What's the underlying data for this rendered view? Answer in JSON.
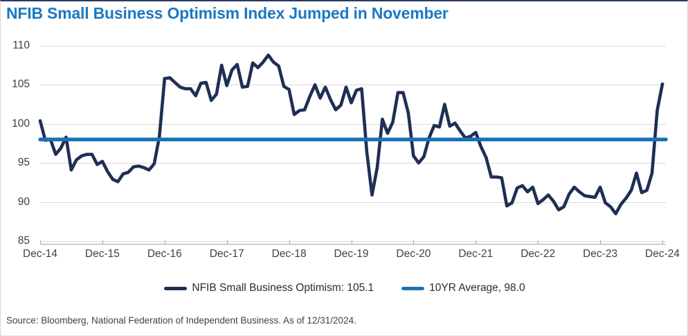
{
  "footer": {
    "source": "Source: Bloomberg, National Federation of Independent Business. As of 12/31/2024."
  },
  "colors": {
    "title": "#1b78c2",
    "series_main": "#1e2f55",
    "series_avg": "#1a72b4",
    "gridline": "#d9d9d9",
    "axis": "#a6a6a6",
    "tick_label": "#404040",
    "legend_text": "#2b2b2b"
  },
  "chart_data": {
    "type": "line",
    "title": "NFIB Small Business Optimism Index Jumped in November",
    "x_frequency": "monthly",
    "x_range": [
      "Dec-14",
      "Dec-24"
    ],
    "x_tick_labels": [
      "Dec-14",
      "Dec-15",
      "Dec-16",
      "Dec-17",
      "Dec-18",
      "Dec-19",
      "Dec-20",
      "Dec-21",
      "Dec-22",
      "Dec-23",
      "Dec-24"
    ],
    "y_tick_labels": [
      85,
      90,
      95,
      100,
      105,
      110
    ],
    "ylim": [
      85,
      110
    ],
    "grid": "horizontal",
    "legend_position": "bottom-center",
    "series": [
      {
        "name": "NFIB Small Business Optimism: 105.1",
        "type": "line",
        "color": "#1e2f55",
        "last_value": 105.1,
        "values": [
          100.4,
          97.9,
          98.0,
          96.1,
          96.9,
          98.3,
          94.1,
          95.4,
          95.9,
          96.1,
          96.1,
          94.8,
          95.2,
          93.9,
          92.9,
          92.6,
          93.6,
          93.8,
          94.5,
          94.6,
          94.4,
          94.1,
          94.9,
          98.4,
          105.8,
          105.9,
          105.3,
          104.7,
          104.5,
          104.5,
          103.6,
          105.2,
          105.3,
          103.0,
          103.8,
          107.5,
          104.9,
          106.9,
          107.6,
          104.7,
          104.8,
          107.8,
          107.2,
          107.9,
          108.8,
          107.9,
          107.4,
          104.8,
          104.4,
          101.2,
          101.7,
          101.8,
          103.5,
          105.0,
          103.3,
          104.7,
          103.1,
          101.8,
          102.4,
          104.7,
          102.7,
          104.3,
          104.5,
          96.4,
          90.9,
          94.4,
          100.6,
          98.8,
          100.2,
          104.0,
          104.0,
          101.4,
          95.9,
          95.0,
          95.8,
          98.2,
          99.8,
          99.6,
          102.5,
          99.7,
          100.1,
          99.1,
          98.2,
          98.4,
          98.9,
          97.1,
          95.7,
          93.2,
          93.2,
          93.1,
          89.5,
          89.9,
          91.8,
          92.1,
          91.3,
          91.9,
          89.8,
          90.3,
          90.9,
          90.1,
          89.0,
          89.4,
          91.0,
          91.9,
          91.3,
          90.8,
          90.7,
          90.6,
          91.9,
          89.9,
          89.4,
          88.5,
          89.7,
          90.5,
          91.5,
          93.7,
          91.2,
          91.5,
          93.7,
          101.7,
          105.1
        ]
      },
      {
        "name": "10YR Average, 98.0",
        "type": "horizontal-line",
        "color": "#1a72b4",
        "value": 98.0
      }
    ]
  }
}
